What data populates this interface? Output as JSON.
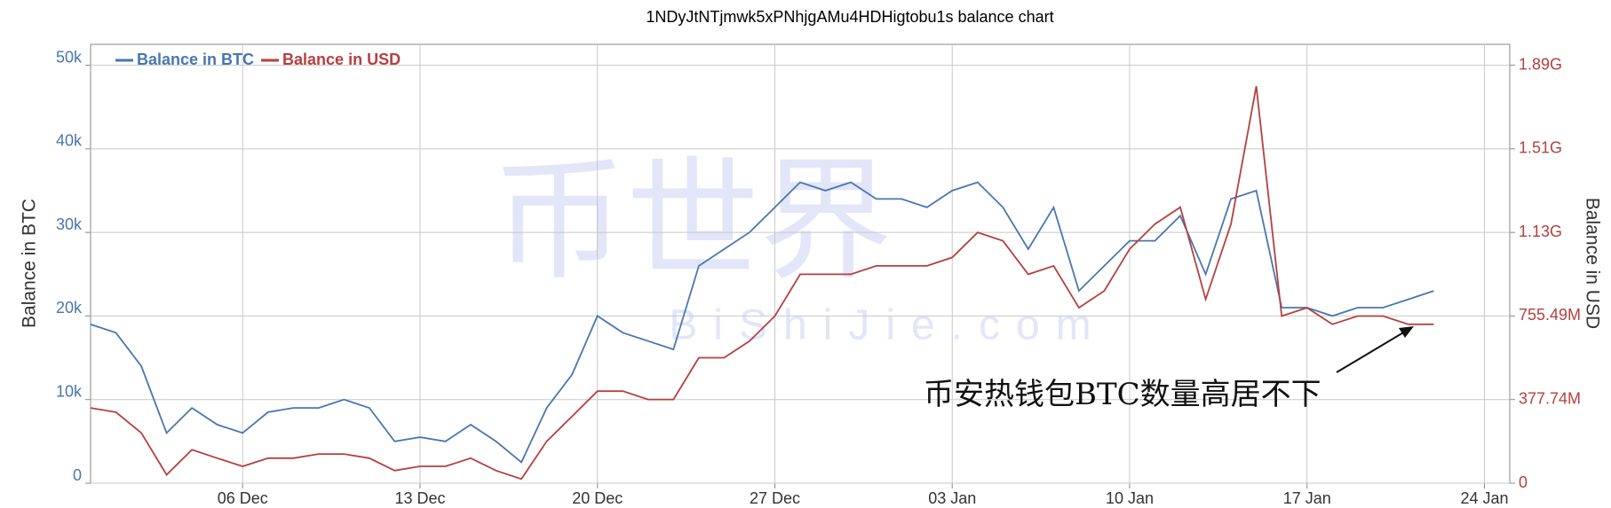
{
  "chart_data": {
    "type": "line",
    "title": "1NDyJtNTjmwk5xPNhjgAMu4HDHigtobu1s balance chart",
    "ylabel": "Balance in BTC",
    "y2label": "Balance in USD",
    "annotation": "币安热钱包BTC数量高居不下",
    "watermark": "币世界",
    "watermark_sub": "BiShiJie.com",
    "x": [
      "30 Nov",
      "01 Dec",
      "02 Dec",
      "03 Dec",
      "04 Dec",
      "05 Dec",
      "06 Dec",
      "07 Dec",
      "08 Dec",
      "09 Dec",
      "10 Dec",
      "11 Dec",
      "12 Dec",
      "13 Dec",
      "14 Dec",
      "15 Dec",
      "16 Dec",
      "17 Dec",
      "18 Dec",
      "19 Dec",
      "20 Dec",
      "21 Dec",
      "22 Dec",
      "23 Dec",
      "24 Dec",
      "25 Dec",
      "26 Dec",
      "27 Dec",
      "28 Dec",
      "29 Dec",
      "30 Dec",
      "31 Dec",
      "01 Jan",
      "02 Jan",
      "03 Jan",
      "04 Jan",
      "05 Jan",
      "06 Jan",
      "07 Jan",
      "08 Jan",
      "09 Jan",
      "10 Jan",
      "11 Jan",
      "12 Jan",
      "13 Jan",
      "14 Jan",
      "15 Jan",
      "16 Jan",
      "17 Jan",
      "18 Jan",
      "19 Jan",
      "20 Jan",
      "21 Jan",
      "22 Jan"
    ],
    "series": [
      {
        "name": "Balance in BTC",
        "color": "#4a76b0",
        "values": [
          19000,
          18000,
          14000,
          6000,
          9000,
          7000,
          6000,
          8500,
          9000,
          9000,
          10000,
          9000,
          5000,
          5500,
          5000,
          7000,
          5000,
          2500,
          9000,
          13000,
          20000,
          18000,
          17000,
          16000,
          26000,
          28000,
          30000,
          33000,
          36000,
          35000,
          36000,
          34000,
          34000,
          33000,
          35000,
          36000,
          33000,
          28000,
          33000,
          23000,
          26000,
          29000,
          29000,
          32000,
          25000,
          34000,
          35000,
          21000,
          21000,
          20000,
          21000,
          21000,
          22000,
          23000
        ]
      },
      {
        "name": "Balance in USD",
        "color": "#b5403f",
        "axis": "y2",
        "values": [
          340000000,
          321000000,
          227000000,
          38000000,
          151000000,
          113000000,
          76000000,
          113000000,
          113000000,
          132000000,
          132000000,
          113000000,
          57000000,
          76000000,
          76000000,
          113000000,
          57000000,
          19000000,
          189000000,
          302000000,
          416000000,
          416000000,
          378000000,
          378000000,
          567000000,
          567000000,
          642000000,
          755000000,
          944000000,
          944000000,
          944000000,
          982000000,
          982000000,
          982000000,
          1020000000,
          1133000000,
          1095000000,
          944000000,
          982000000,
          793000000,
          869000000,
          1058000000,
          1171000000,
          1247000000,
          831000000,
          1171000000,
          1794000000,
          755000000,
          793000000,
          718000000,
          755000000,
          755000000,
          718000000,
          718000000
        ]
      }
    ],
    "xlim": [
      "30 Nov",
      "25 Jan"
    ],
    "xticks": [
      "06 Dec",
      "13 Dec",
      "20 Dec",
      "27 Dec",
      "03 Jan",
      "10 Jan",
      "17 Jan",
      "24 Jan"
    ],
    "ylim": [
      0,
      52500
    ],
    "yticks": [
      0,
      {
        "value": 10000,
        "label": "10k"
      },
      {
        "value": 20000,
        "label": "20k"
      },
      {
        "value": 30000,
        "label": "30k"
      },
      {
        "value": 40000,
        "label": "40k"
      },
      {
        "value": 50000,
        "label": "50k"
      }
    ],
    "y2lim": [
      0,
      1983135000
    ],
    "y2ticks": [
      0,
      {
        "value": 377740000,
        "label": "377.74M"
      },
      {
        "value": 755490000,
        "label": "755.49M"
      },
      {
        "value": 1133230000,
        "label": "1.13G"
      },
      {
        "value": 1510970000,
        "label": "1.51G"
      },
      {
        "value": 1888720000,
        "label": "1.89G"
      }
    ],
    "grid": true,
    "legend": "top-left"
  }
}
